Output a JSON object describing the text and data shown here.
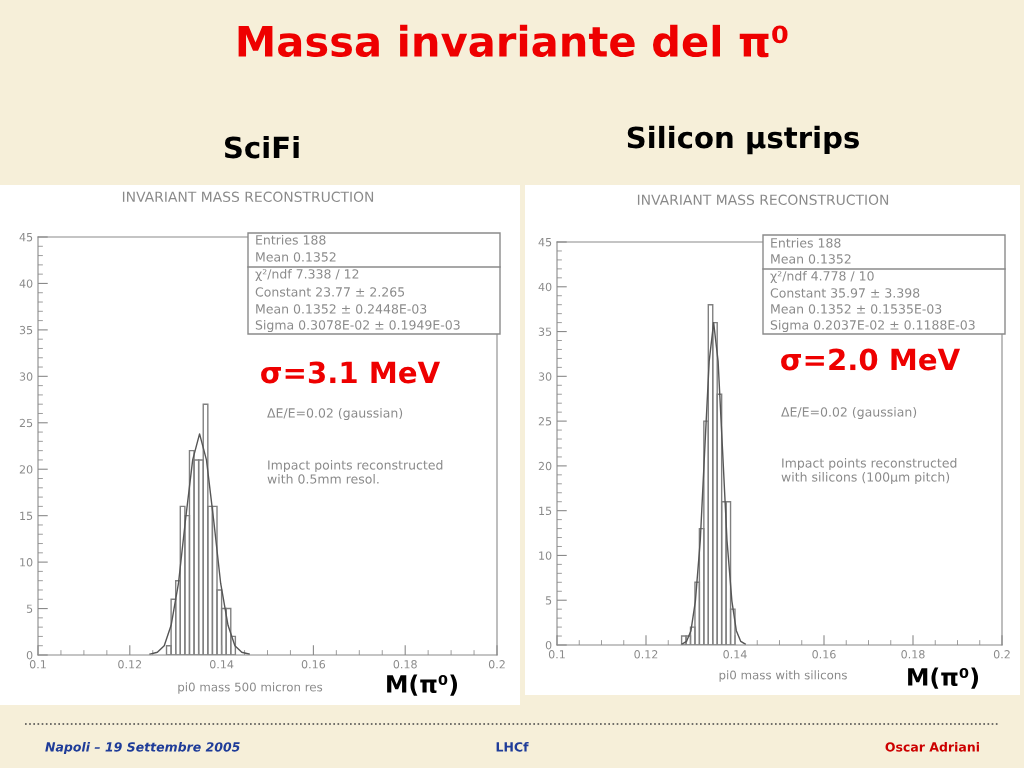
{
  "chart_data": [
    {
      "type": "histogram",
      "title": "INVARIANT MASS RECONSTRUCTION",
      "subtitle": "SciFi",
      "xlabel": "pi0 mass 500 micron res",
      "bins": [
        0.128,
        0.129,
        0.13,
        0.131,
        0.132,
        0.133,
        0.134,
        0.135,
        0.136,
        0.137,
        0.138,
        0.139,
        0.14,
        0.141,
        0.142,
        0.143
      ],
      "values": [
        1,
        6,
        8,
        16,
        15,
        22,
        21,
        21,
        27,
        16,
        16,
        7,
        5,
        5,
        2
      ],
      "color": "#808080",
      "series": [
        {
          "type": "line",
          "color": "#555555",
          "x": [
            0.1244,
            0.126,
            0.1275,
            0.129,
            0.1306,
            0.1321,
            0.1337,
            0.1352,
            0.1367,
            0.1383,
            0.1398,
            0.1414,
            0.1429,
            0.1444,
            0.146
          ],
          "values": [
            0.1,
            0.3,
            1.0,
            3.2,
            7.7,
            14.4,
            21.0,
            23.8,
            21.0,
            14.4,
            7.7,
            3.2,
            1.0,
            0.3,
            0.1
          ]
        }
      ],
      "xlim": [
        0.1,
        0.2
      ],
      "xticks": [
        0.1,
        0.12,
        0.14,
        0.16,
        0.18,
        0.2
      ],
      "ylim": [
        0,
        45
      ],
      "yticks": [
        0,
        5,
        10,
        15,
        20,
        25,
        30,
        35,
        40,
        45
      ],
      "annotations": [
        "Massa invariante del π⁰",
        "Entries 188",
        "Mean 0.1352",
        "χ²/ndf 7.338 / 12",
        "Constant 23.77 ± 2.265",
        "Mean 0.1352 ± 0.2448E-03",
        "Sigma 0.3078E-02 ± 0.1949E-03",
        "σ=3.1 MeV",
        "ΔE/E=0.02 (gaussian)",
        "Impact points reconstructed\nwith 0.5mm resol.",
        "M(π⁰)",
        "Napoli – 19 Settembre 2005",
        "LHCf",
        "Oscar Adriani"
      ]
    },
    {
      "type": "histogram",
      "title": "INVARIANT MASS RECONSTRUCTION",
      "subtitle": "Silicon μstrips",
      "xlabel": "pi0 mass with silicons",
      "bins": [
        0.128,
        0.129,
        0.13,
        0.131,
        0.132,
        0.133,
        0.134,
        0.135,
        0.136,
        0.137,
        0.138,
        0.139,
        0.14
      ],
      "values": [
        1,
        1,
        2,
        7,
        13,
        25,
        38,
        36,
        28,
        16,
        16,
        4
      ],
      "color": "#808080",
      "series": [
        {
          "type": "line",
          "color": "#555555",
          "x": [
            0.1281,
            0.1291,
            0.1301,
            0.1311,
            0.1322,
            0.1332,
            0.1342,
            0.1352,
            0.1362,
            0.1372,
            0.1382,
            0.1393,
            0.1403,
            0.1413,
            0.1423
          ],
          "values": [
            0.1,
            0.4,
            1.6,
            4.9,
            11.7,
            21.8,
            31.7,
            36.0,
            31.7,
            21.8,
            11.7,
            4.9,
            1.6,
            0.4,
            0.1
          ]
        }
      ],
      "xlim": [
        0.1,
        0.2
      ],
      "xticks": [
        0.1,
        0.12,
        0.14,
        0.16,
        0.18,
        0.2
      ],
      "ylim": [
        0,
        45
      ],
      "yticks": [
        0,
        5,
        10,
        15,
        20,
        25,
        30,
        35,
        40,
        45
      ],
      "annotations": [
        "Entries 188",
        "Mean 0.1352",
        "χ²/ndf 4.778 / 10",
        "Constant 35.97 ± 3.398",
        "Mean 0.1352 ± 0.1535E-03",
        "Sigma 0.2037E-02 ± 0.1188E-03",
        "σ=2.0 MeV",
        "ΔE/E=0.02 (gaussian)",
        "Impact points reconstructed\nwith silicons (100μm pitch)",
        "M(π⁰)"
      ]
    }
  ]
}
